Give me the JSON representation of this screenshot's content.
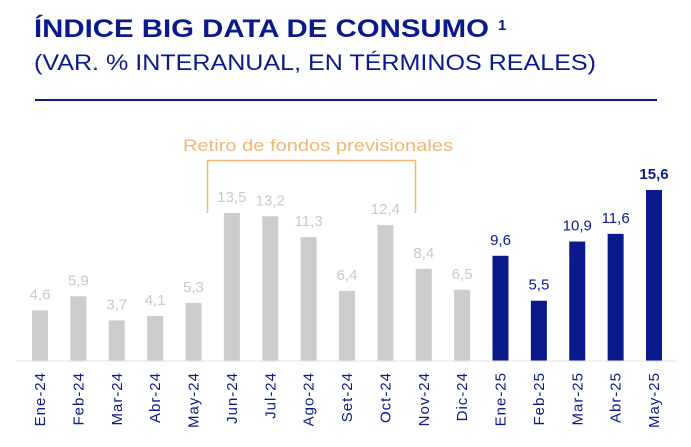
{
  "chart_data": {
    "type": "bar",
    "title": "ÍNDICE BIG DATA DE CONSUMO",
    "title_footnote": "1",
    "subtitle": "(VAR. % INTERANUAL, EN TÉRMINOS REALES)",
    "categories": [
      "Ene-24",
      "Feb-24",
      "Mar-24",
      "Abr-24",
      "May-24",
      "Jun-24",
      "Jul-24",
      "Ago-24",
      "Set-24",
      "Oct-24",
      "Nov-24",
      "Dic-24",
      "Ene-25",
      "Feb-25",
      "Mar-25",
      "Abr-25",
      "May-25"
    ],
    "values": [
      4.6,
      5.9,
      3.7,
      4.1,
      5.3,
      13.5,
      13.2,
      11.3,
      6.4,
      12.4,
      8.4,
      6.5,
      9.6,
      5.5,
      10.9,
      11.6,
      15.6
    ],
    "value_labels": [
      "4,6",
      "5,9",
      "3,7",
      "4,1",
      "5,3",
      "13,5",
      "13,2",
      "11,3",
      "6,4",
      "12,4",
      "8,4",
      "6,5",
      "9,6",
      "5,5",
      "10,9",
      "11,6",
      "15,6"
    ],
    "ylim": [
      0,
      16
    ],
    "grid": false,
    "annotation": {
      "text": "Retiro de fondos previsionales",
      "from": "Jun-24",
      "to": "Nov-24"
    },
    "colors": {
      "2024": "#cccccc",
      "2025": "#0b1a8a",
      "label_2024": "#c9c9c9",
      "label_2025": "#0b1a8a",
      "annotation": "#f4b672",
      "title": "#0b1a8a"
    }
  }
}
